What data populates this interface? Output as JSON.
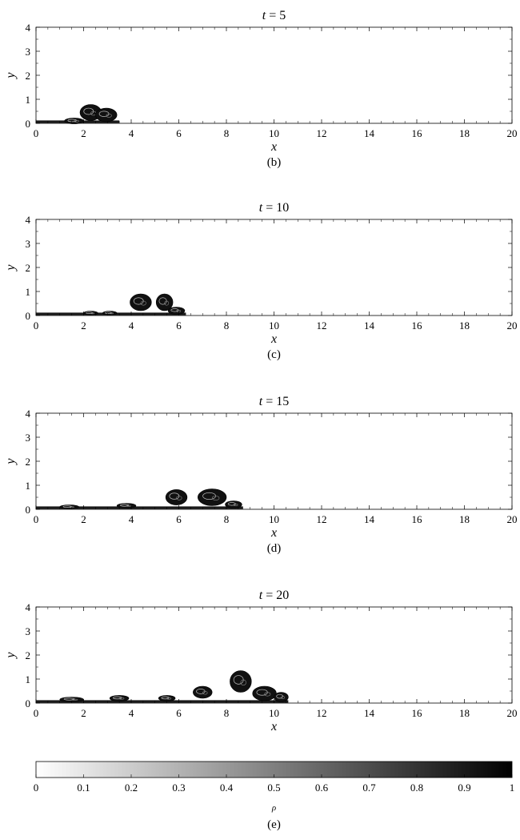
{
  "panels": [
    {
      "title_var": "t",
      "title_eq": "= 5",
      "caption": "(b)",
      "front": 3.5,
      "features": [
        {
          "cx": 2.3,
          "cy": 0.45,
          "rx": 0.45,
          "ry": 0.33
        },
        {
          "cx": 2.95,
          "cy": 0.35,
          "rx": 0.45,
          "ry": 0.28
        },
        {
          "cx": 1.6,
          "cy": 0.1,
          "rx": 0.4,
          "ry": 0.12
        }
      ]
    },
    {
      "title_var": "t",
      "title_eq": "= 10",
      "caption": "(c)",
      "front": 6.3,
      "features": [
        {
          "cx": 4.4,
          "cy": 0.55,
          "rx": 0.45,
          "ry": 0.35
        },
        {
          "cx": 5.4,
          "cy": 0.55,
          "rx": 0.35,
          "ry": 0.35
        },
        {
          "cx": 5.9,
          "cy": 0.2,
          "rx": 0.35,
          "ry": 0.15
        },
        {
          "cx": 2.3,
          "cy": 0.1,
          "rx": 0.3,
          "ry": 0.08
        },
        {
          "cx": 3.1,
          "cy": 0.1,
          "rx": 0.3,
          "ry": 0.08
        }
      ]
    },
    {
      "title_var": "t",
      "title_eq": "= 15",
      "caption": "(d)",
      "front": 8.7,
      "features": [
        {
          "cx": 5.9,
          "cy": 0.5,
          "rx": 0.45,
          "ry": 0.32
        },
        {
          "cx": 7.4,
          "cy": 0.5,
          "rx": 0.6,
          "ry": 0.35
        },
        {
          "cx": 8.3,
          "cy": 0.2,
          "rx": 0.35,
          "ry": 0.15
        },
        {
          "cx": 3.8,
          "cy": 0.15,
          "rx": 0.4,
          "ry": 0.1
        },
        {
          "cx": 1.4,
          "cy": 0.1,
          "rx": 0.4,
          "ry": 0.08
        }
      ]
    },
    {
      "title_var": "t",
      "title_eq": "= 20",
      "caption": "",
      "front": 10.6,
      "features": [
        {
          "cx": 8.6,
          "cy": 0.9,
          "rx": 0.45,
          "ry": 0.45
        },
        {
          "cx": 9.6,
          "cy": 0.4,
          "rx": 0.5,
          "ry": 0.3
        },
        {
          "cx": 10.3,
          "cy": 0.25,
          "rx": 0.3,
          "ry": 0.2
        },
        {
          "cx": 7.0,
          "cy": 0.45,
          "rx": 0.4,
          "ry": 0.25
        },
        {
          "cx": 5.5,
          "cy": 0.2,
          "rx": 0.35,
          "ry": 0.12
        },
        {
          "cx": 3.5,
          "cy": 0.2,
          "rx": 0.4,
          "ry": 0.12
        },
        {
          "cx": 1.5,
          "cy": 0.15,
          "rx": 0.5,
          "ry": 0.1
        }
      ]
    }
  ],
  "axes": {
    "xlabel": "x",
    "ylabel": "y",
    "xticks": [
      "0",
      "2",
      "4",
      "6",
      "8",
      "10",
      "12",
      "14",
      "16",
      "18",
      "20"
    ],
    "yticks": [
      "0",
      "1",
      "2",
      "3",
      "4"
    ],
    "xlim": [
      0,
      20
    ],
    "ylim": [
      0,
      4
    ]
  },
  "colorbar": {
    "label": "ρ",
    "ticks": [
      "0",
      "0.1",
      "0.2",
      "0.3",
      "0.4",
      "0.5",
      "0.6",
      "0.7",
      "0.8",
      "0.9",
      "1"
    ],
    "range": [
      0,
      1
    ],
    "colormap": [
      "#ffffff",
      "#000000"
    ]
  },
  "final_caption": "(e)"
}
